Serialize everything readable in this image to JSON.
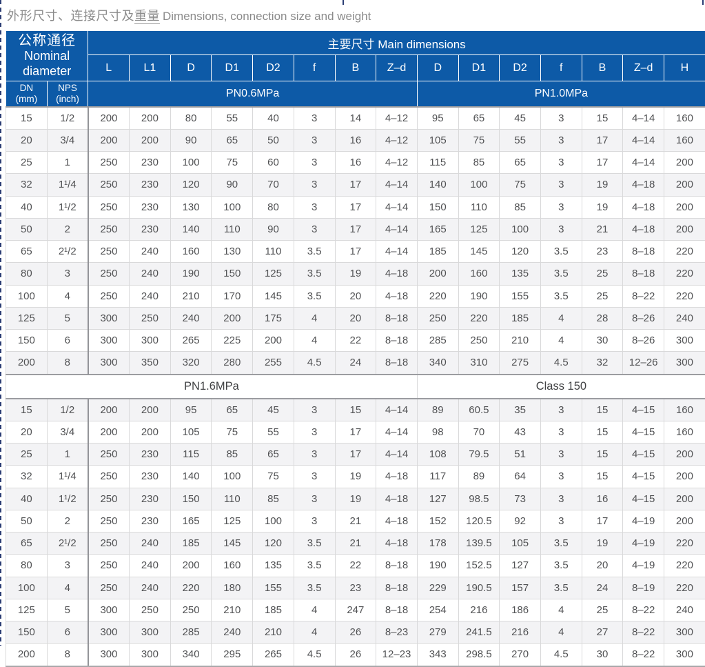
{
  "title": {
    "zh_prefix": "外形尺寸、连接尺寸及",
    "zh_underlined": "重量",
    "en": "Dimensions, connection size and weight"
  },
  "colors": {
    "header_blue": "#0d5aa7",
    "row_stripe": "#f3f3f5",
    "title_gray": "#8b8b8b",
    "data_text_gray": "#515254",
    "dashed_border_navy": "#2b3d74"
  },
  "table": {
    "nominal_header": {
      "zh": "公称通径",
      "en1": "Nominal",
      "en2": "diameter"
    },
    "main_header": "主要尺寸 Main dimensions",
    "sub_headers": [
      "L",
      "L1",
      "D",
      "D1",
      "D2",
      "f",
      "B",
      "Z–d",
      "D",
      "D1",
      "D2",
      "f",
      "B",
      "Z–d",
      "H"
    ],
    "dn_header": {
      "line1": "DN",
      "line2": "(mm)"
    },
    "nps_header": {
      "line1": "NPS",
      "line2": "(inch)"
    },
    "pressure_band": {
      "left": "PN0.6MPa",
      "right": "PN1.0MPa"
    },
    "mid_band": {
      "left": "PN1.6MPa",
      "right": "Class 150"
    },
    "section1_rows": [
      {
        "dn": "15",
        "nps": "1/2",
        "values": [
          "200",
          "200",
          "80",
          "55",
          "40",
          "3",
          "14",
          "4–12",
          "95",
          "65",
          "45",
          "3",
          "15",
          "4–14",
          "160"
        ]
      },
      {
        "dn": "20",
        "nps": "3/4",
        "values": [
          "200",
          "200",
          "90",
          "65",
          "50",
          "3",
          "16",
          "4–12",
          "105",
          "75",
          "55",
          "3",
          "17",
          "4–14",
          "160"
        ]
      },
      {
        "dn": "25",
        "nps": "1",
        "values": [
          "250",
          "230",
          "100",
          "75",
          "60",
          "3",
          "16",
          "4–12",
          "115",
          "85",
          "65",
          "3",
          "17",
          "4–14",
          "200"
        ]
      },
      {
        "dn": "32",
        "nps": "1¹/4",
        "values": [
          "250",
          "230",
          "120",
          "90",
          "70",
          "3",
          "17",
          "4–14",
          "140",
          "100",
          "75",
          "3",
          "19",
          "4–18",
          "200"
        ]
      },
      {
        "dn": "40",
        "nps": "1¹/2",
        "values": [
          "250",
          "230",
          "130",
          "100",
          "80",
          "3",
          "17",
          "4–14",
          "150",
          "110",
          "85",
          "3",
          "19",
          "4–18",
          "200"
        ]
      },
      {
        "dn": "50",
        "nps": "2",
        "values": [
          "250",
          "230",
          "140",
          "110",
          "90",
          "3",
          "17",
          "4–14",
          "165",
          "125",
          "100",
          "3",
          "21",
          "4–18",
          "200"
        ]
      },
      {
        "dn": "65",
        "nps": "2¹/2",
        "values": [
          "250",
          "240",
          "160",
          "130",
          "110",
          "3.5",
          "17",
          "4–14",
          "185",
          "145",
          "120",
          "3.5",
          "23",
          "8–18",
          "220"
        ]
      },
      {
        "dn": "80",
        "nps": "3",
        "values": [
          "250",
          "240",
          "190",
          "150",
          "125",
          "3.5",
          "19",
          "4–18",
          "200",
          "160",
          "135",
          "3.5",
          "25",
          "8–18",
          "220"
        ]
      },
      {
        "dn": "100",
        "nps": "4",
        "values": [
          "250",
          "240",
          "210",
          "170",
          "145",
          "3.5",
          "20",
          "4–18",
          "220",
          "190",
          "155",
          "3.5",
          "25",
          "8–22",
          "220"
        ]
      },
      {
        "dn": "125",
        "nps": "5",
        "values": [
          "300",
          "250",
          "240",
          "200",
          "175",
          "4",
          "20",
          "8–18",
          "250",
          "220",
          "185",
          "4",
          "28",
          "8–26",
          "240"
        ]
      },
      {
        "dn": "150",
        "nps": "6",
        "values": [
          "300",
          "300",
          "265",
          "225",
          "200",
          "4",
          "22",
          "8–18",
          "285",
          "250",
          "210",
          "4",
          "30",
          "8–26",
          "300"
        ]
      },
      {
        "dn": "200",
        "nps": "8",
        "values": [
          "300",
          "350",
          "320",
          "280",
          "255",
          "4.5",
          "24",
          "8–18",
          "340",
          "310",
          "275",
          "4.5",
          "32",
          "12–26",
          "300"
        ]
      }
    ],
    "section2_rows": [
      {
        "dn": "15",
        "nps": "1/2",
        "values": [
          "200",
          "200",
          "95",
          "65",
          "45",
          "3",
          "15",
          "4–14",
          "89",
          "60.5",
          "35",
          "3",
          "15",
          "4–15",
          "160"
        ]
      },
      {
        "dn": "20",
        "nps": "3/4",
        "values": [
          "200",
          "200",
          "105",
          "75",
          "55",
          "3",
          "17",
          "4–14",
          "98",
          "70",
          "43",
          "3",
          "15",
          "4–15",
          "160"
        ]
      },
      {
        "dn": "25",
        "nps": "1",
        "values": [
          "250",
          "230",
          "115",
          "85",
          "65",
          "3",
          "17",
          "4–14",
          "108",
          "79.5",
          "51",
          "3",
          "15",
          "4–15",
          "200"
        ]
      },
      {
        "dn": "32",
        "nps": "1¹/4",
        "values": [
          "250",
          "230",
          "140",
          "100",
          "75",
          "3",
          "19",
          "4–18",
          "117",
          "89",
          "64",
          "3",
          "15",
          "4–15",
          "200"
        ]
      },
      {
        "dn": "40",
        "nps": "1¹/2",
        "values": [
          "250",
          "230",
          "150",
          "110",
          "85",
          "3",
          "19",
          "4–18",
          "127",
          "98.5",
          "73",
          "3",
          "16",
          "4–15",
          "200"
        ]
      },
      {
        "dn": "50",
        "nps": "2",
        "values": [
          "250",
          "230",
          "165",
          "125",
          "100",
          "3",
          "21",
          "4–18",
          "152",
          "120.5",
          "92",
          "3",
          "17",
          "4–19",
          "200"
        ]
      },
      {
        "dn": "65",
        "nps": "2¹/2",
        "values": [
          "250",
          "240",
          "185",
          "145",
          "120",
          "3.5",
          "21",
          "4–18",
          "178",
          "139.5",
          "105",
          "3.5",
          "19",
          "4–19",
          "220"
        ]
      },
      {
        "dn": "80",
        "nps": "3",
        "values": [
          "250",
          "240",
          "200",
          "160",
          "135",
          "3.5",
          "22",
          "8–18",
          "190",
          "152.5",
          "127",
          "3.5",
          "20",
          "4–19",
          "220"
        ]
      },
      {
        "dn": "100",
        "nps": "4",
        "values": [
          "250",
          "240",
          "220",
          "180",
          "155",
          "3.5",
          "23",
          "8–18",
          "229",
          "190.5",
          "157",
          "3.5",
          "24",
          "8–19",
          "220"
        ]
      },
      {
        "dn": "125",
        "nps": "5",
        "values": [
          "300",
          "250",
          "250",
          "210",
          "185",
          "4",
          "247",
          "8–18",
          "254",
          "216",
          "186",
          "4",
          "25",
          "8–22",
          "240"
        ]
      },
      {
        "dn": "150",
        "nps": "6",
        "values": [
          "300",
          "300",
          "285",
          "240",
          "210",
          "4",
          "26",
          "8–23",
          "279",
          "241.5",
          "216",
          "4",
          "27",
          "8–22",
          "300"
        ]
      },
      {
        "dn": "200",
        "nps": "8",
        "values": [
          "300",
          "300",
          "340",
          "295",
          "265",
          "4.5",
          "26",
          "12–23",
          "343",
          "298.5",
          "270",
          "4.5",
          "30",
          "8–22",
          "300"
        ]
      }
    ]
  }
}
